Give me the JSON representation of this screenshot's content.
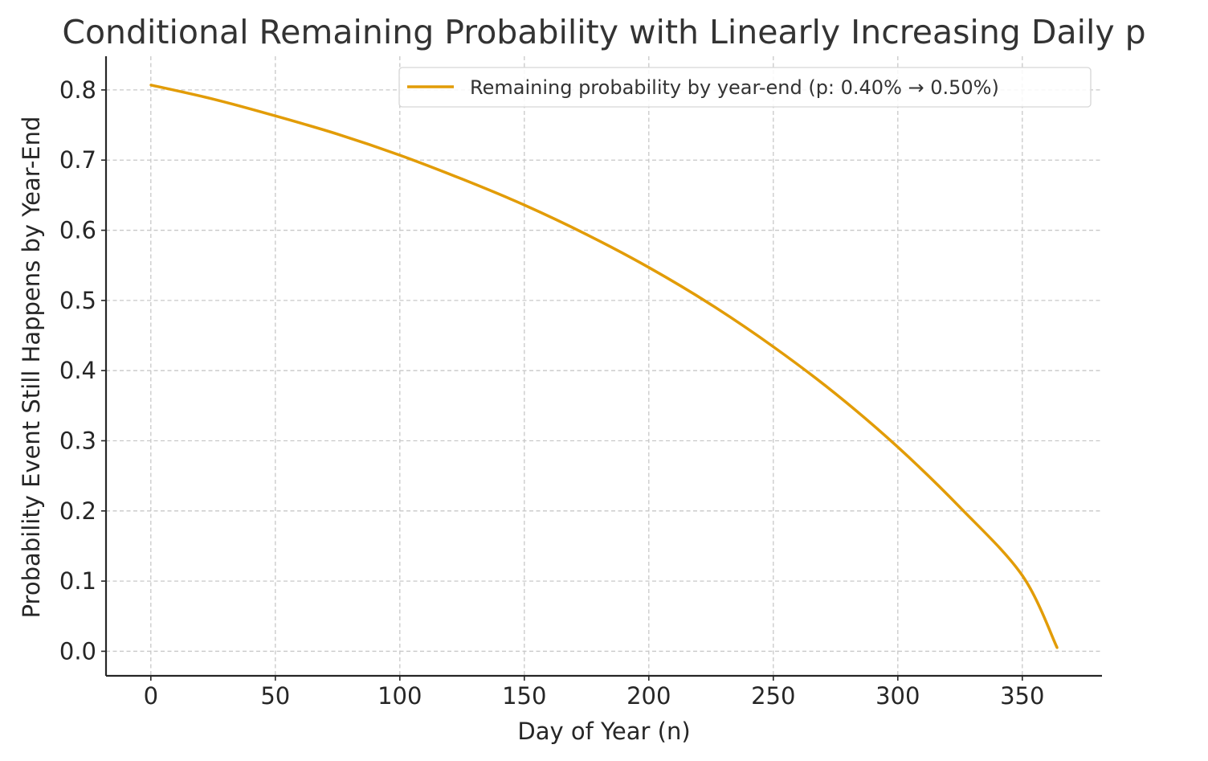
{
  "chart_data": {
    "type": "line",
    "title": "Conditional Remaining Probability with Linearly Increasing Daily p",
    "xlabel": "Day of Year (n)",
    "ylabel": "Probability Event Still Happens by Year-End",
    "xlim": [
      -18,
      382
    ],
    "ylim": [
      -0.035,
      0.848
    ],
    "xticks": [
      0,
      50,
      100,
      150,
      200,
      250,
      300,
      350
    ],
    "yticks": [
      0.0,
      0.1,
      0.2,
      0.3,
      0.4,
      0.5,
      0.6,
      0.7,
      0.8
    ],
    "xtick_labels": [
      "0",
      "50",
      "100",
      "150",
      "200",
      "250",
      "300",
      "350"
    ],
    "ytick_labels": [
      "0.0",
      "0.1",
      "0.2",
      "0.3",
      "0.4",
      "0.5",
      "0.6",
      "0.7",
      "0.8"
    ],
    "grid": true,
    "legend_position": "top-right",
    "series": [
      {
        "name": "Remaining probability by year-end (p: 0.40% → 0.50%)",
        "color": "#e29c07",
        "x": [
          0,
          25,
          50,
          75,
          100,
          125,
          150,
          175,
          200,
          225,
          250,
          275,
          300,
          325,
          350,
          364
        ],
        "y": [
          0.807,
          0.787,
          0.763,
          0.737,
          0.707,
          0.673,
          0.636,
          0.594,
          0.547,
          0.494,
          0.434,
          0.367,
          0.291,
          0.205,
          0.108,
          0.005
        ]
      }
    ]
  }
}
